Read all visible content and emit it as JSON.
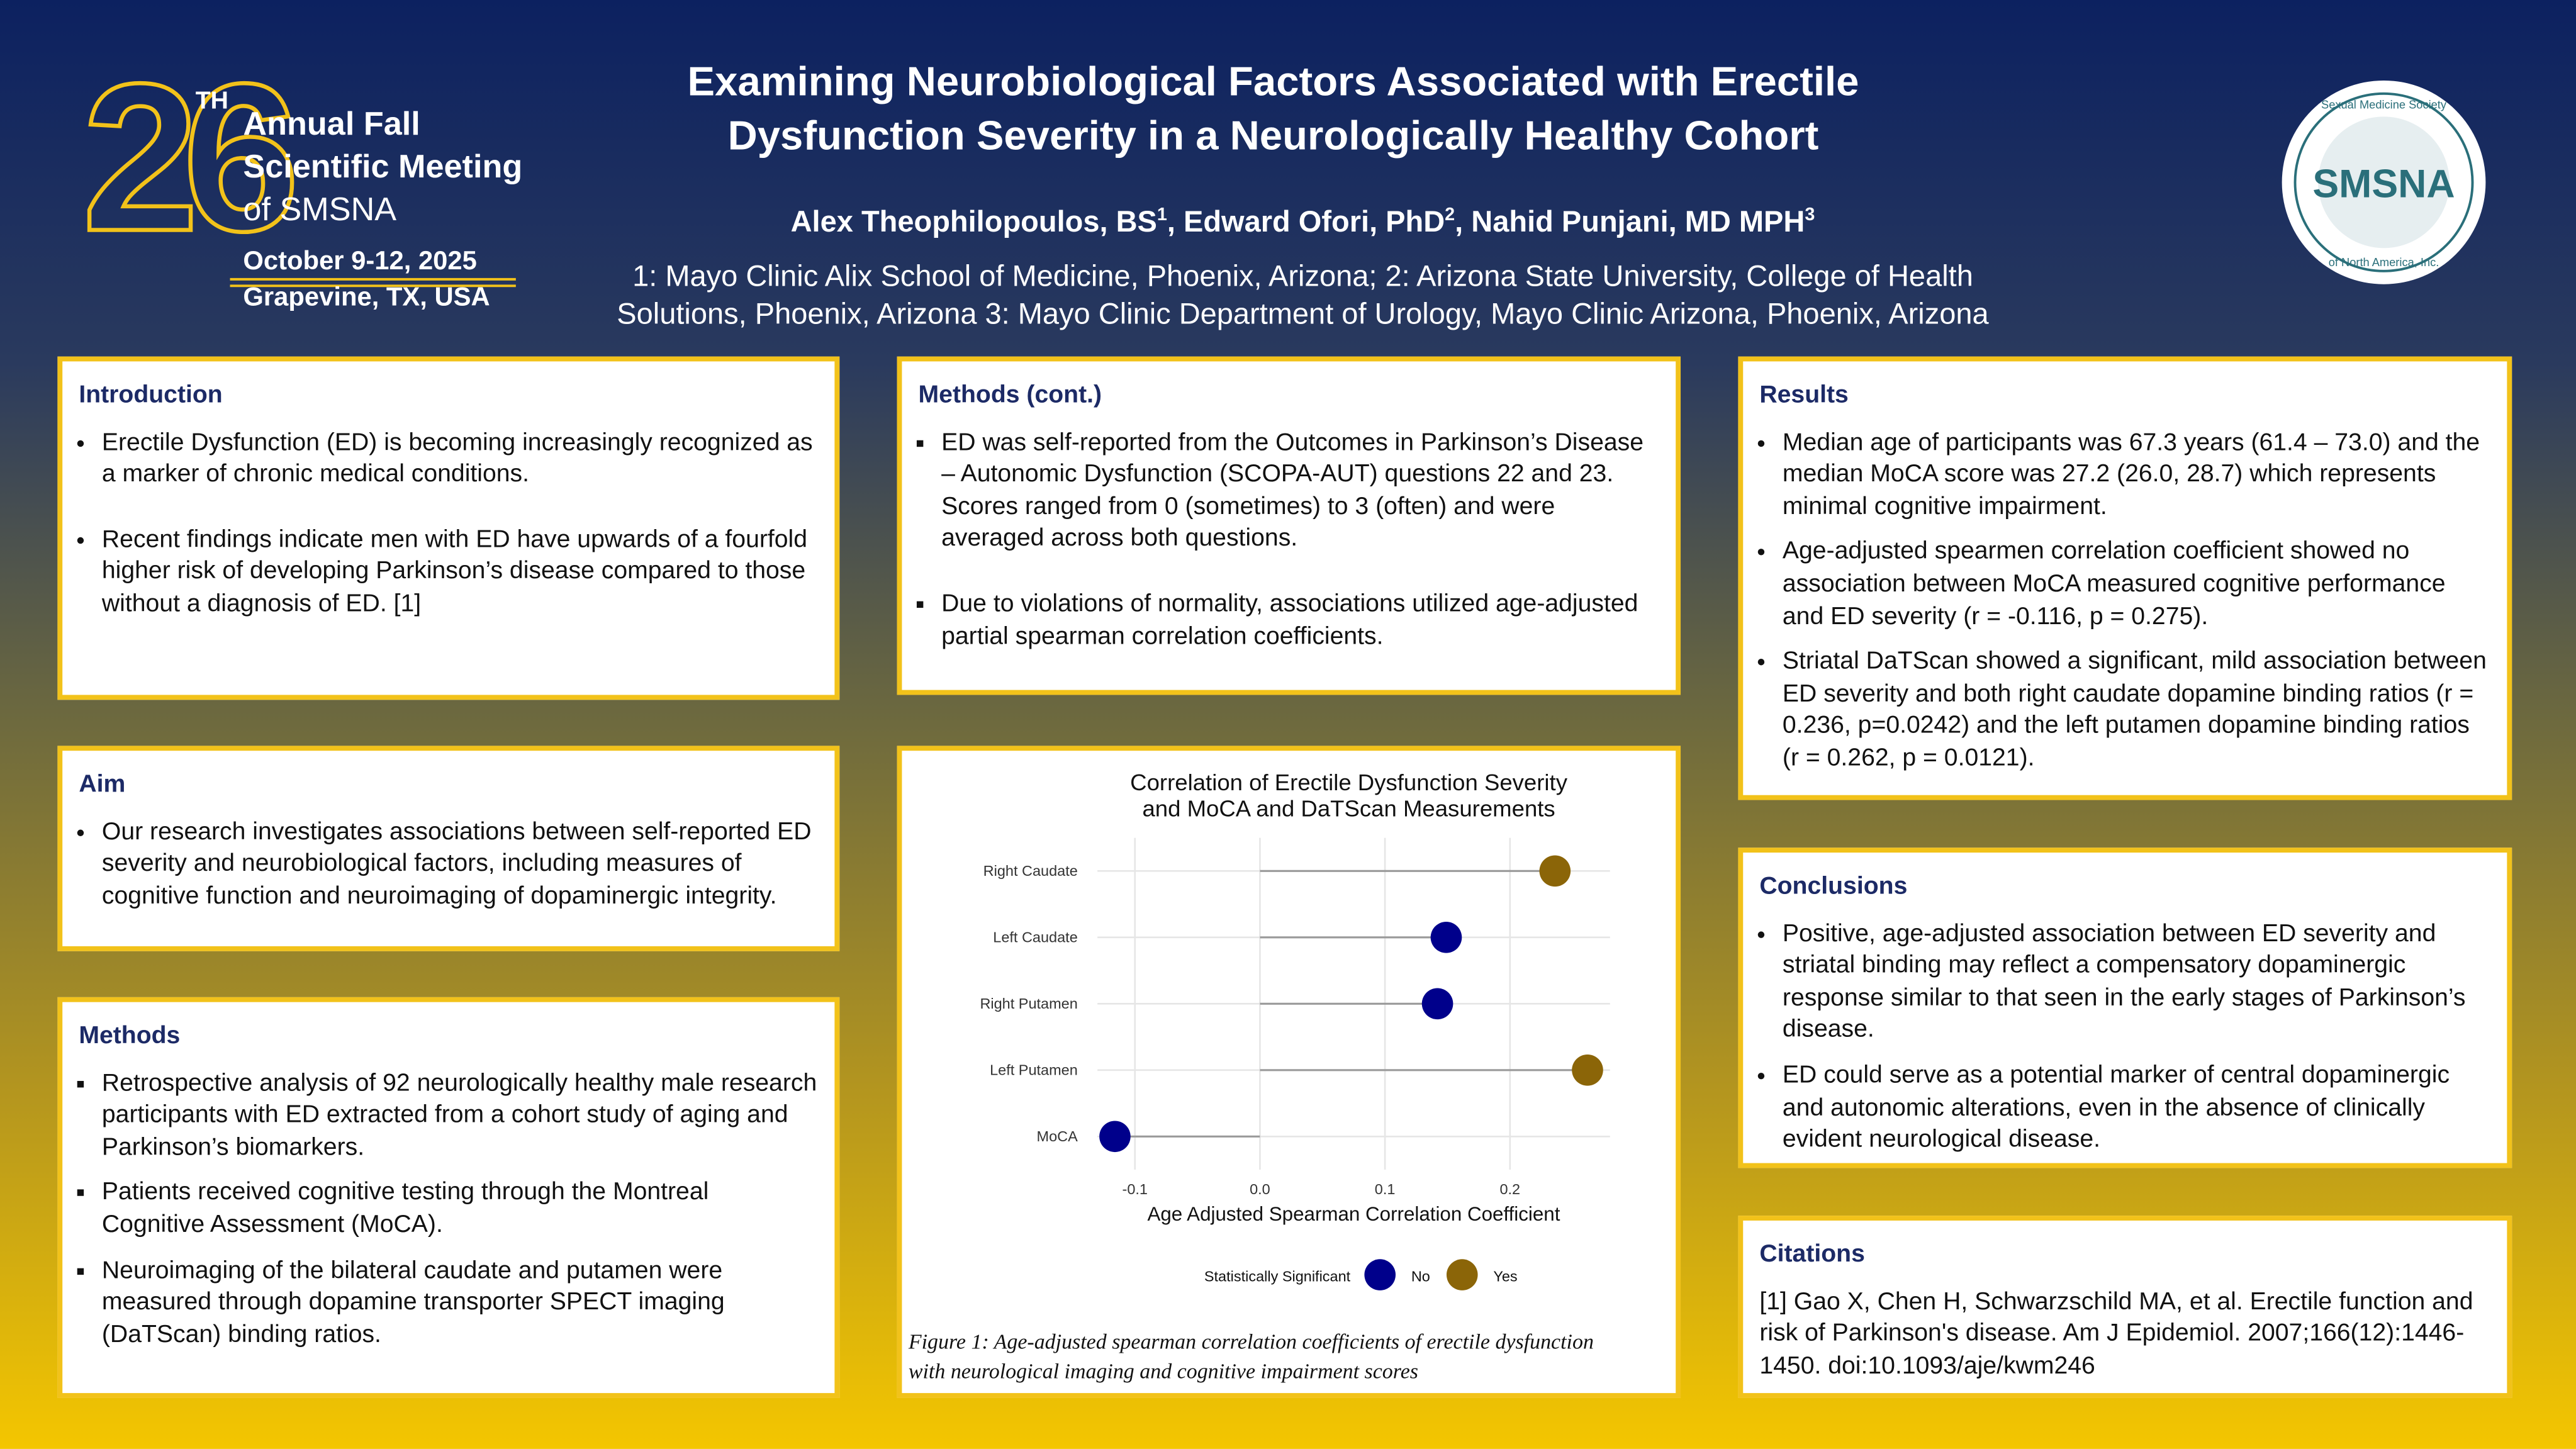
{
  "event_logo": {
    "number": "26",
    "suffix": "TH",
    "lines": [
      "Annual Fall",
      "Scientific Meeting",
      "of SMSNA"
    ],
    "date": "October 9-12, 2025",
    "location": "Grapevine, TX, USA"
  },
  "society_logo": {
    "top": "Sexual Medicine Society",
    "name": "SMSNA",
    "bottom": "of North America, Inc."
  },
  "header": {
    "title_lines": [
      "Examining Neurobiological Factors Associated with Erectile",
      "Dysfunction Severity in a Neurologically Healthy Cohort"
    ],
    "authors": [
      {
        "text": "Alex Theophilopoulos, BS",
        "sup": "1"
      },
      {
        "text": ", Edward Ofori, PhD",
        "sup": "2"
      },
      {
        "text": ", Nahid Punjani, MD MPH",
        "sup": "3"
      }
    ],
    "affiliations": [
      "1: Mayo Clinic Alix School of Medicine, Phoenix, Arizona; 2: Arizona State University, College of Health",
      "Solutions, Phoenix, Arizona  3: Mayo Clinic Department of Urology, Mayo Clinic Arizona, Phoenix, Arizona"
    ]
  },
  "sections": {
    "introduction": {
      "heading": "Introduction",
      "bullets": [
        "Erectile Dysfunction (ED) is becoming increasingly recognized as a marker of chronic medical conditions.",
        "Recent findings indicate men with ED have upwards of a fourfold higher risk of developing Parkinson’s disease compared to those without a diagnosis of ED. [1]"
      ]
    },
    "aim": {
      "heading": "Aim",
      "bullets": [
        "Our research investigates associations between self-reported ED severity and neurobiological factors, including measures of cognitive function and neuroimaging of dopaminergic integrity."
      ]
    },
    "methods": {
      "heading": "Methods",
      "bullets": [
        "Retrospective analysis of 92 neurologically healthy male research participants with ED extracted from a cohort study of aging and Parkinson’s biomarkers.",
        "Patients received cognitive testing through the Montreal Cognitive Assessment (MoCA).",
        "Neuroimaging of the bilateral caudate and putamen were measured through dopamine transporter SPECT imaging (DaTScan) binding ratios."
      ]
    },
    "methods_cont": {
      "heading": "Methods (cont.)",
      "bullets": [
        "ED was self-reported from the Outcomes in Parkinson’s Disease – Autonomic Dysfunction (SCOPA-AUT) questions 22 and 23. Scores ranged from 0 (sometimes) to 3 (often) and were averaged across both questions.",
        "Due to violations of normality, associations utilized age-adjusted partial spearman correlation coefficients."
      ]
    },
    "results": {
      "heading": "Results",
      "bullets": [
        "Median age of participants was 67.3 years (61.4 – 73.0) and the median MoCA score was 27.2 (26.0, 28.7) which represents minimal cognitive impairment.",
        "Age-adjusted spearmen correlation coefficient showed no association between MoCA measured cognitive performance and ED severity (r = -0.116, p = 0.275).",
        "Striatal DaTScan showed a significant, mild association between ED severity and both right caudate dopamine binding ratios (r = 0.236, p=0.0242) and the left putamen dopamine binding ratios (r = 0.262, p = 0.0121)."
      ]
    },
    "conclusions": {
      "heading": "Conclusions",
      "bullets": [
        "Positive, age-adjusted association between ED severity and striatal binding may reflect a compensatory dopaminergic response similar to that seen in the early stages of Parkinson’s disease.",
        "ED could serve as a potential marker of central dopaminergic and autonomic alterations, even in the absence of clinically evident neurological disease."
      ]
    },
    "citations": {
      "heading": "Citations",
      "text": "[1] Gao X, Chen H, Schwarzschild MA, et al. Erectile function and risk of Parkinson's disease. Am J Epidemiol. 2007;166(12):1446-1450. doi:10.1093/aje/kwm246"
    }
  },
  "chart_data": {
    "type": "lollipop",
    "title": "Correlation of Erectile Dysfunction Severity\nand MoCA and DaTScan Measurements",
    "xlabel": "Age Adjusted Spearman Correlation Coefficient",
    "categories": [
      "Right Caudate",
      "Left Caudate",
      "Right Putamen",
      "Left Putamen",
      "MoCA"
    ],
    "series": [
      {
        "name": "No",
        "color": "#00008b",
        "values": [
          null,
          0.149,
          0.142,
          null,
          -0.116
        ]
      },
      {
        "name": "Yes",
        "color": "#8b6508",
        "values": [
          0.236,
          null,
          null,
          0.262,
          null
        ]
      }
    ],
    "legend_title": "Statistically Significant",
    "xlim": [
      -0.13,
      0.28
    ],
    "xticks": [
      -0.1,
      {
        "value": 0,
        "label": "0.0"
      },
      0.1,
      0.2
    ],
    "grid": true,
    "caption": "Figure 1: Age-adjusted spearman correlation coefficients of erectile dysfunction with neurological imaging and cognitive impairment scores"
  }
}
